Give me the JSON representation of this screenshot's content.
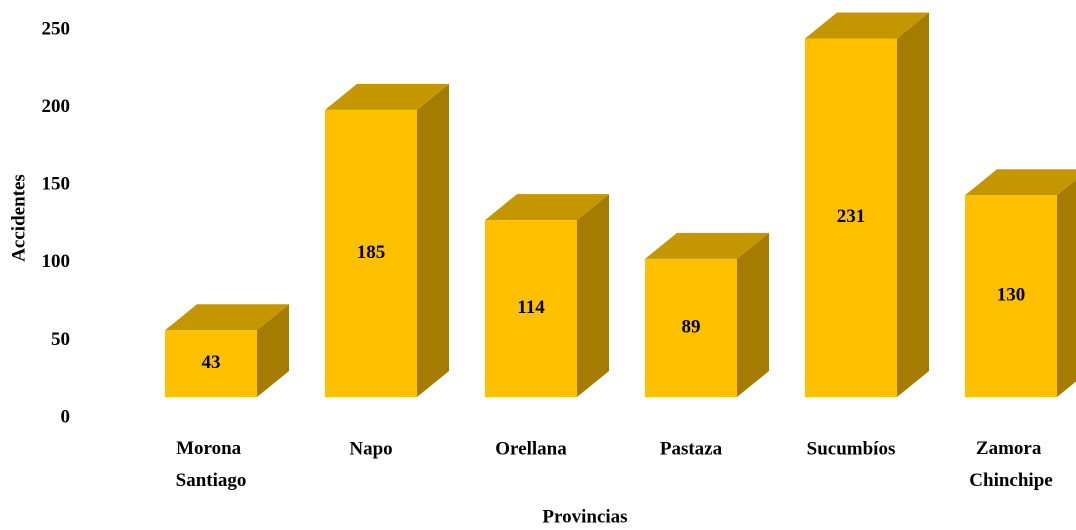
{
  "chart_data": {
    "type": "bar3d",
    "categories": [
      "Morona Santiago",
      "Napo",
      "Orellana",
      "Pastaza",
      "Sucumbíos",
      "Zamora Chinchipe"
    ],
    "values": [
      43,
      185,
      114,
      89,
      231,
      130
    ],
    "color": "#ffc000",
    "xlabel": "Provincias",
    "ylabel": "Accidentes",
    "ylim": [
      0,
      250
    ],
    "yticks": [
      0,
      50,
      100,
      150,
      200,
      250
    ],
    "grid": false
  }
}
